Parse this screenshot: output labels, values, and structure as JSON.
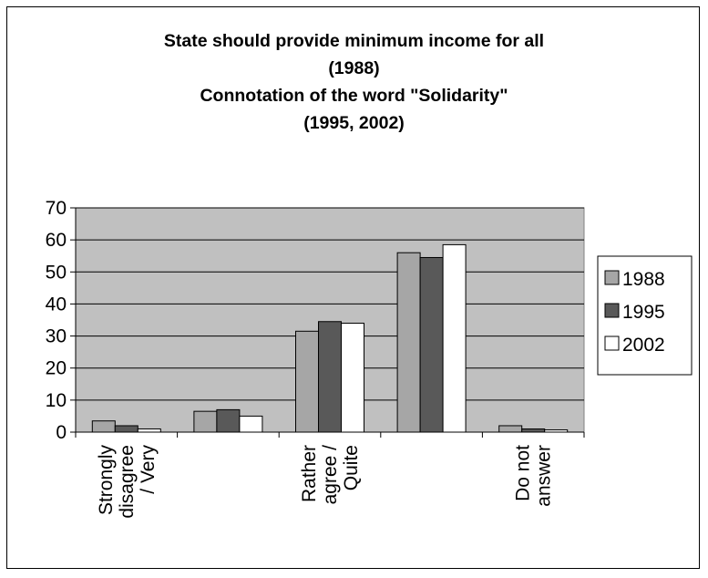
{
  "chart_data": {
    "type": "bar",
    "title_lines": [
      "State should provide minimum income for all",
      "(1988)",
      "Connotation of the word \"Solidarity\"",
      "(1995, 2002)"
    ],
    "categories": [
      [
        "Strongly",
        "disagree",
        "/ Very"
      ],
      [],
      [
        "Rather",
        "agree /",
        "Quite"
      ],
      [],
      [
        "Do not",
        "answer"
      ]
    ],
    "series": [
      {
        "name": "1988",
        "color": "#a6a6a6",
        "values": [
          3.5,
          6.5,
          31.5,
          56,
          2
        ]
      },
      {
        "name": "1995",
        "color": "#595959",
        "values": [
          2,
          7,
          34.5,
          54.5,
          1
        ]
      },
      {
        "name": "2002",
        "color": "#ffffff",
        "values": [
          1,
          5,
          34,
          58.5,
          0.7
        ]
      }
    ],
    "y_ticks": [
      "0",
      "10",
      "20",
      "30",
      "40",
      "50",
      "60",
      "70"
    ],
    "ylim": [
      0,
      70
    ],
    "plot_background": "#c0c0c0",
    "grid": true,
    "legend_position": "right"
  }
}
